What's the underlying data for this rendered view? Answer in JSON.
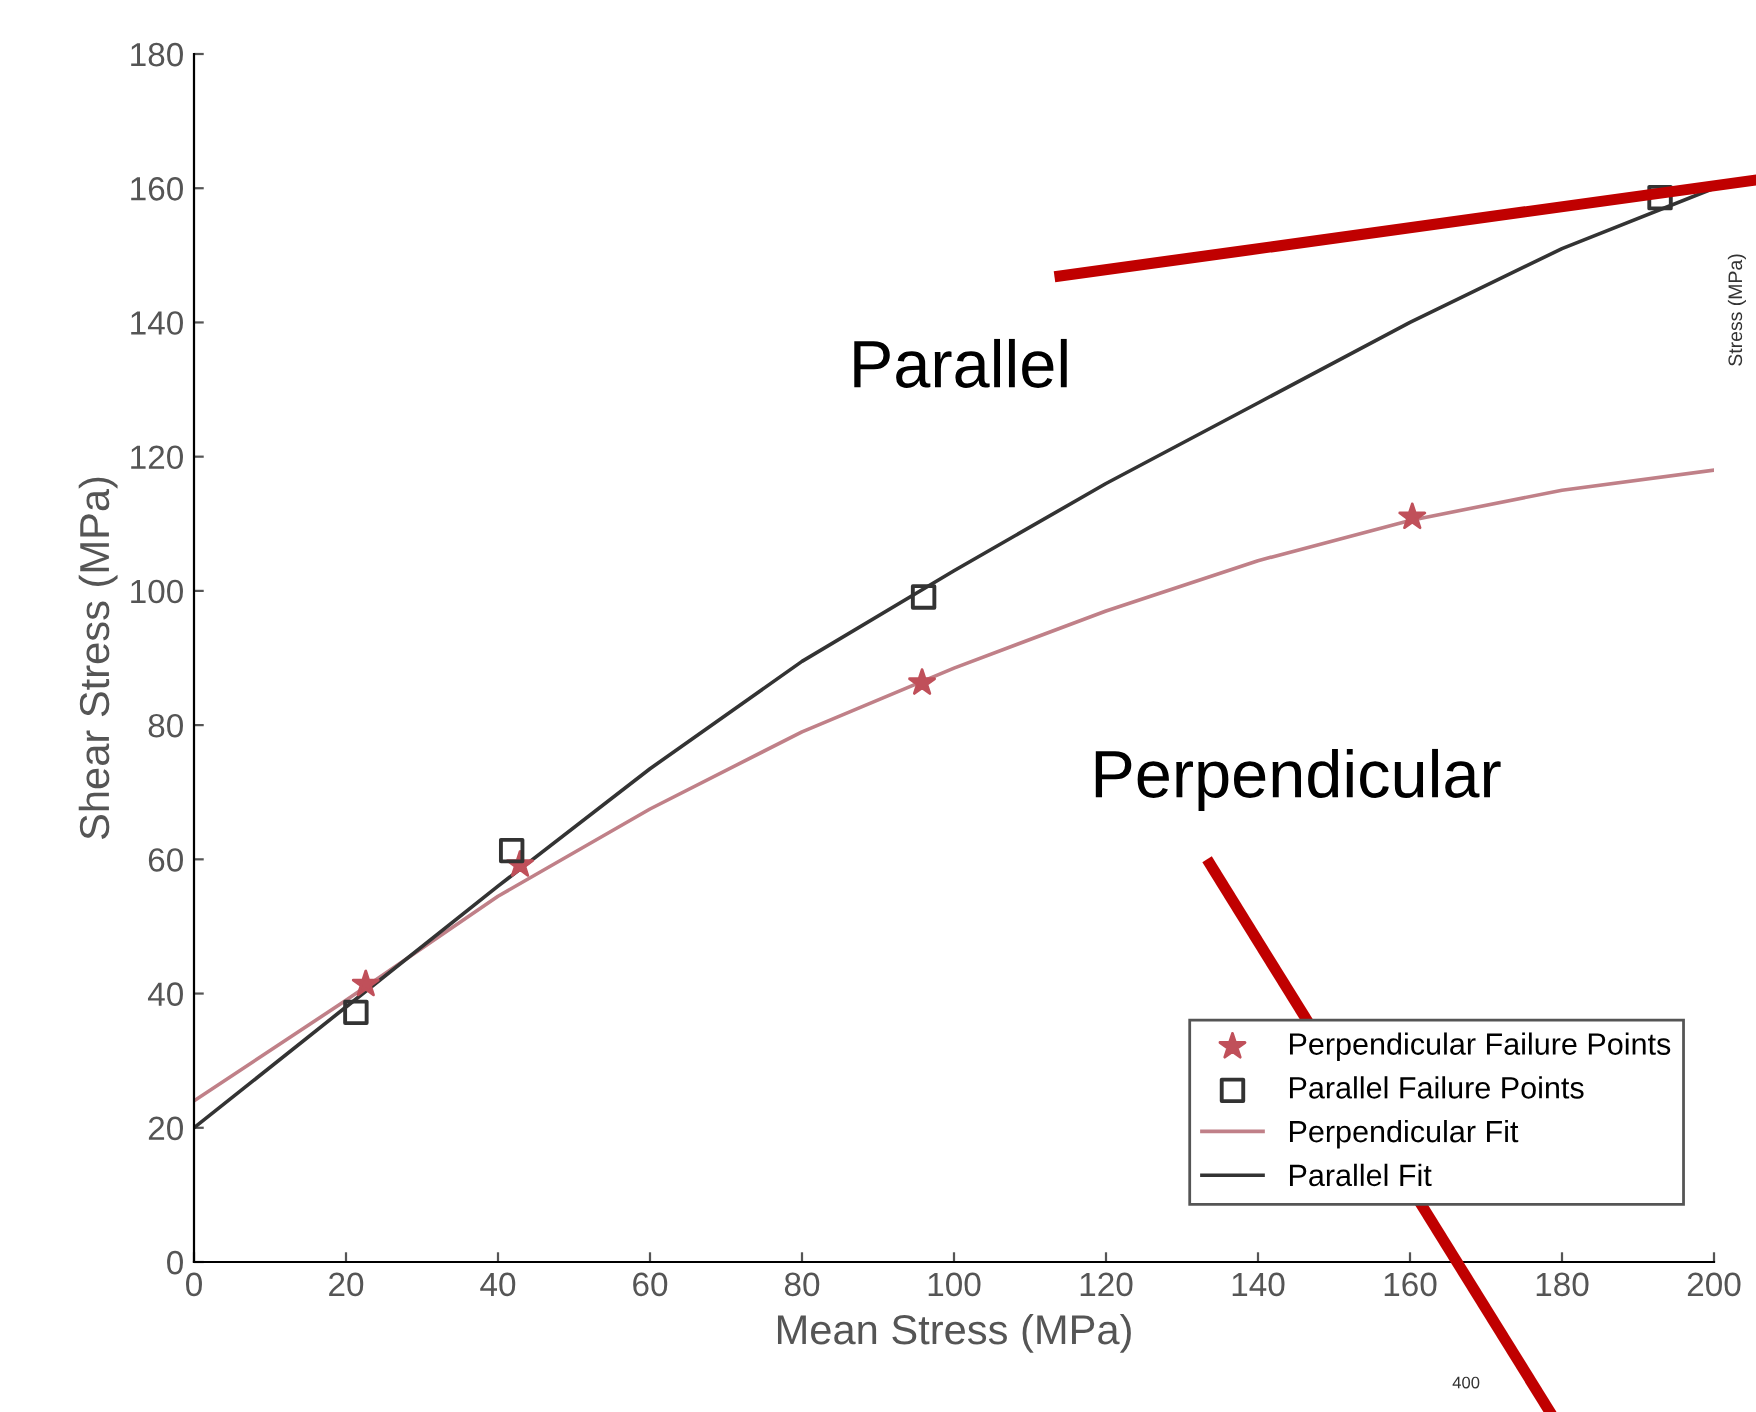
{
  "chart_data": {
    "type": "scatter",
    "xlabel": "Mean Stress (MPa)",
    "ylabel": "Shear Stress (MPa)",
    "xlim": [
      0,
      200
    ],
    "ylim": [
      0,
      180
    ],
    "xticks": [
      0,
      20,
      40,
      60,
      80,
      100,
      120,
      140,
      160,
      180,
      200
    ],
    "yticks": [
      0,
      20,
      40,
      60,
      80,
      100,
      120,
      140,
      160,
      180
    ],
    "grid": false,
    "legend": "bottom right",
    "series": [
      {
        "name": "Perpendicular Failure Points",
        "marker": "star",
        "color": "#c0505a",
        "x": [
          22.6,
          42.9,
          95.8,
          160.3
        ],
        "values": [
          41.4,
          59.2,
          86.3,
          111
        ]
      },
      {
        "name": "Parallel Failure Points",
        "marker": "square",
        "color": "#333333",
        "x": [
          21.3,
          41.8,
          96,
          192.9
        ],
        "values": [
          37.2,
          61.3,
          99.1,
          158.6
        ]
      },
      {
        "name": "Perpendicular Fit",
        "type": "line",
        "marker": "none",
        "color": "#c08088",
        "x": [
          0,
          20,
          40,
          60,
          80,
          100,
          120,
          140,
          160,
          180,
          200
        ],
        "values": [
          24,
          39,
          54.5,
          67.5,
          79,
          88.5,
          97,
          104.5,
          110.5,
          115,
          118
        ]
      },
      {
        "name": "Parallel Fit",
        "type": "line",
        "marker": "none",
        "color": "#333333",
        "x": [
          0,
          20,
          40,
          60,
          80,
          100,
          120,
          140,
          160,
          180,
          200
        ],
        "values": [
          20,
          38,
          56,
          73.5,
          89.5,
          103,
          116,
          128,
          140,
          151,
          160
        ]
      }
    ],
    "annotations": [
      "Parallel",
      "Perpendicular",
      "Stress (MPa)",
      "400"
    ]
  }
}
